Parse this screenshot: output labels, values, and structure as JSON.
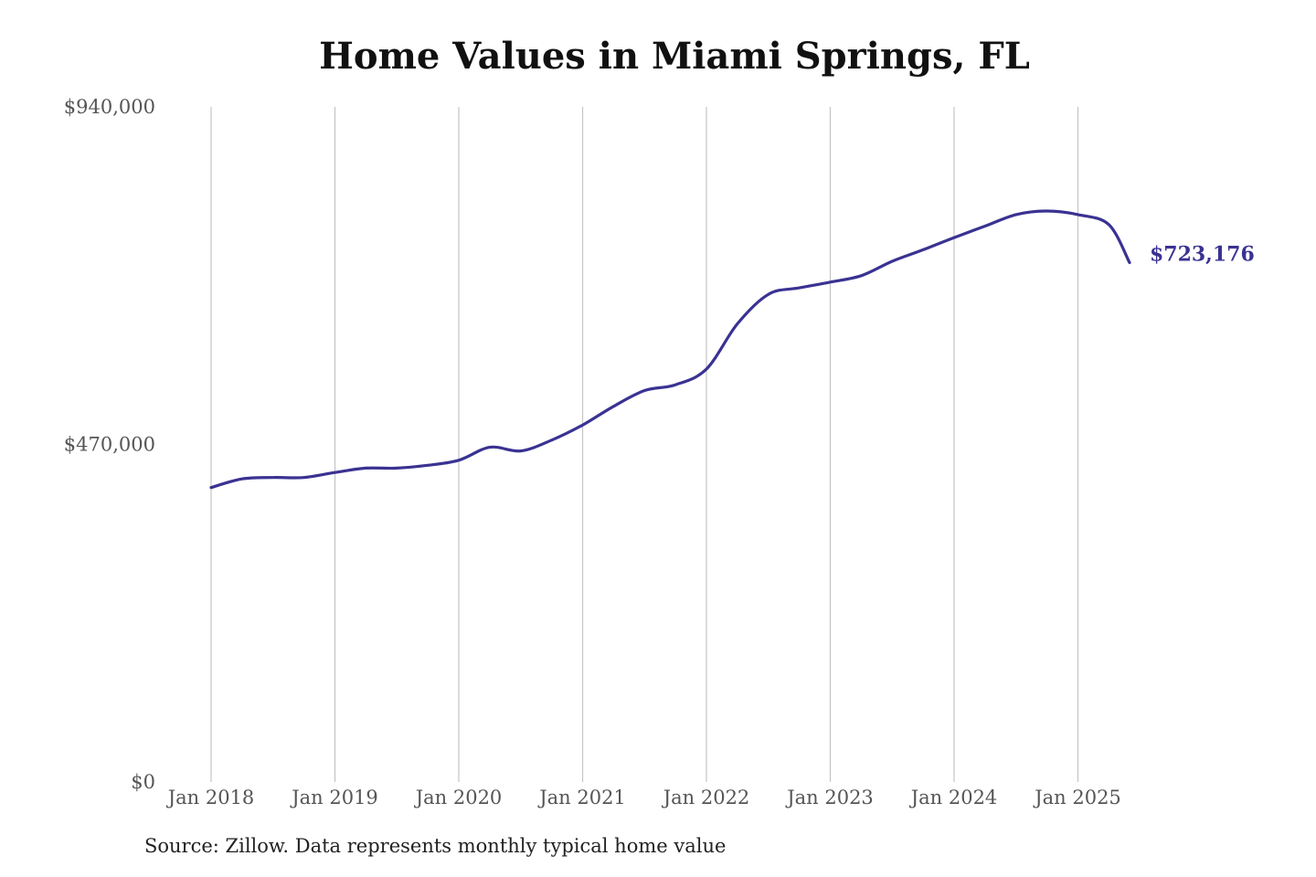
{
  "chart_data": {
    "type": "line",
    "title": "Home Values in Miami Springs, FL",
    "xlabel": "",
    "ylabel": "",
    "ylim": [
      0,
      940000
    ],
    "yticks": [
      0,
      470000,
      940000
    ],
    "ytick_labels": [
      "$0",
      "$470,000",
      "$940,000"
    ],
    "xlim": [
      "2018-01",
      "2025-06"
    ],
    "xticks": [
      "2018-01",
      "2019-01",
      "2020-01",
      "2021-01",
      "2022-01",
      "2023-01",
      "2024-01",
      "2025-01"
    ],
    "xtick_labels": [
      "Jan 2018",
      "Jan 2019",
      "Jan 2020",
      "Jan 2021",
      "Jan 2022",
      "Jan 2023",
      "Jan 2024",
      "Jan 2025"
    ],
    "grid": "vertical",
    "series": [
      {
        "color": "#3a3292",
        "end_label": "$723,176",
        "x": [
          "2018-01",
          "2018-04",
          "2018-07",
          "2018-10",
          "2019-01",
          "2019-04",
          "2019-07",
          "2019-10",
          "2020-01",
          "2020-04",
          "2020-07",
          "2020-10",
          "2021-01",
          "2021-04",
          "2021-07",
          "2021-10",
          "2022-01",
          "2022-04",
          "2022-07",
          "2022-10",
          "2023-01",
          "2023-04",
          "2023-07",
          "2023-10",
          "2024-01",
          "2024-04",
          "2024-07",
          "2024-10",
          "2025-01",
          "2025-04",
          "2025-06"
        ],
        "values": [
          410000,
          422000,
          424000,
          424000,
          431000,
          437000,
          437000,
          441000,
          448000,
          466000,
          461000,
          476000,
          497000,
          523000,
          545000,
          553000,
          575000,
          638000,
          679000,
          688000,
          696000,
          705000,
          725000,
          741000,
          758000,
          774000,
          790000,
          795000,
          790000,
          776000,
          723176
        ]
      }
    ]
  },
  "source": "Source: Zillow. Data represents monthly typical home value"
}
